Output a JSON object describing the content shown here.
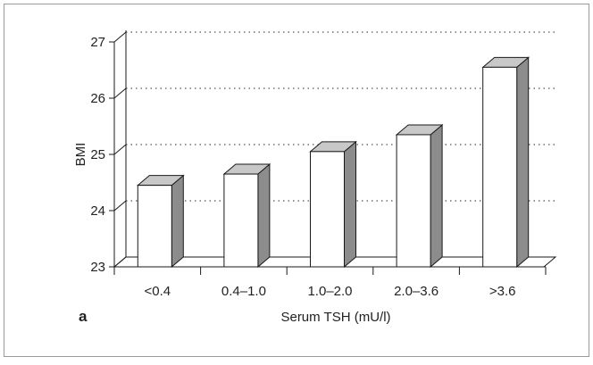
{
  "panel_label": "a",
  "chart_data": {
    "type": "bar",
    "title": "",
    "xlabel": "Serum TSH (mU/l)",
    "ylabel": "BMI",
    "categories": [
      "<0.4",
      "0.4–1.0",
      "1.0–2.0",
      "2.0–3.6",
      ">3.6"
    ],
    "values": [
      24.45,
      24.65,
      25.05,
      25.35,
      26.55
    ],
    "ylim": [
      23,
      27
    ],
    "yticks": [
      "23",
      "24",
      "25",
      "26",
      "27"
    ],
    "grid": "dotted-horizontal",
    "style": "3d-bar",
    "colors": {
      "front": "#ffffff",
      "top": "#c8c8c8",
      "side": "#8c8c8c",
      "stroke": "#1a1a1a"
    }
  }
}
